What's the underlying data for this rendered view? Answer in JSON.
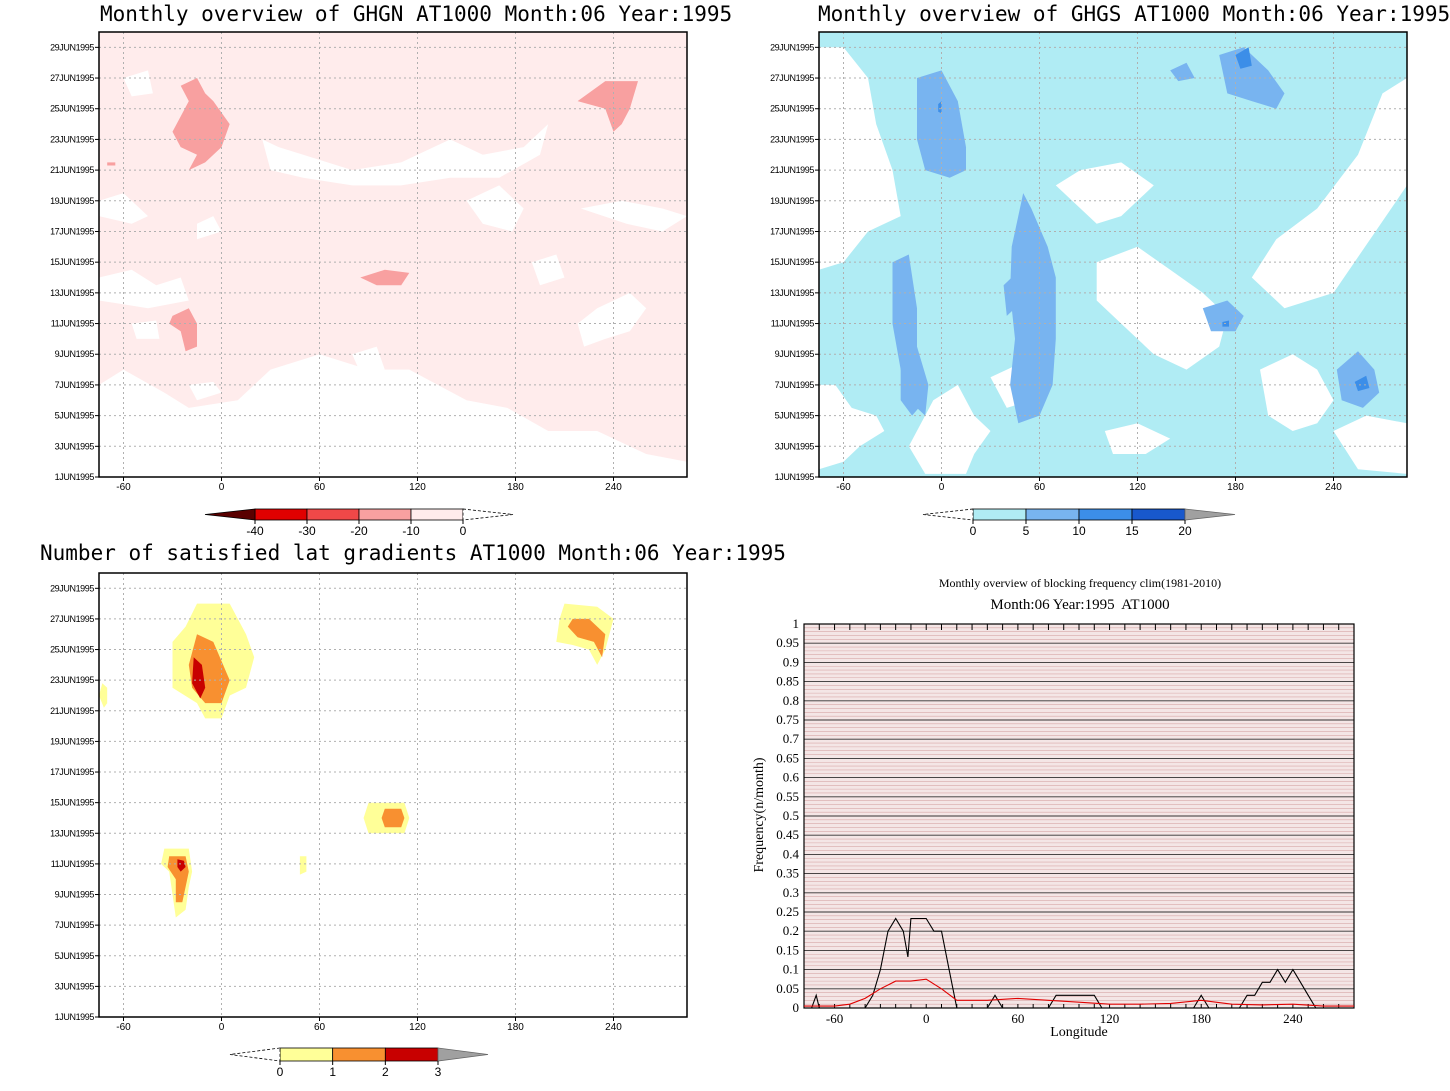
{
  "panels": {
    "ghgn": {
      "title": "Monthly overview of GHGN AT1000 Month:06 Year:1995",
      "colorbar": {
        "labels": [
          "-40",
          "-30",
          "-20",
          "-10",
          "0"
        ],
        "colors": [
          "#5a0000",
          "#e00000",
          "#f04848",
          "#f8a0a0",
          "#ffecec"
        ]
      },
      "fill_base": "#ffecec",
      "fill_white": "#ffffff",
      "fill_level": "#f8a0a0",
      "fill_level2": "#f04848"
    },
    "ghgs": {
      "title": "Monthly overview of GHGS AT1000 Month:06 Year:1995",
      "colorbar": {
        "labels": [
          "0",
          "5",
          "10",
          "15",
          "20"
        ],
        "colors": [
          "#b0ecf4",
          "#78b4f0",
          "#3c8ee8",
          "#1858cc",
          "#a0a0a0"
        ]
      },
      "fill_base": "#b0ecf4",
      "fill_white": "#ffffff",
      "fill_level": "#78b4f0",
      "fill_level2": "#3c8ee8"
    },
    "gradients": {
      "title": "Number of satisfied lat gradients AT1000 Month:06 Year:1995",
      "colorbar": {
        "labels": [
          "0",
          "1",
          "2",
          "3"
        ],
        "colors": [
          "#ffff98",
          "#f89030",
          "#c80000",
          "#a0a0a0"
        ]
      }
    },
    "blocking": {
      "title": "Monthly overview of blocking frequency clim(1981-2010)",
      "subtitle": "Month:06 Year:1995  AT1000",
      "ylabel": "Frequency(n/month)",
      "xlabel": "Longitude"
    }
  },
  "axes": {
    "date_ticks": [
      "1JUN1995",
      "3JUN1995",
      "5JUN1995",
      "7JUN1995",
      "9JUN1995",
      "11JUN1995",
      "13JUN1995",
      "15JUN1995",
      "17JUN1995",
      "19JUN1995",
      "21JUN1995",
      "23JUN1995",
      "25JUN1995",
      "27JUN1995",
      "29JUN1995"
    ],
    "lon_ticks": [
      "-60",
      "0",
      "60",
      "120",
      "180",
      "240"
    ]
  },
  "chart_data": [
    {
      "type": "heatmap",
      "title": "Monthly overview of GHGN AT1000 Month:06 Year:1995",
      "x_axis": "longitude",
      "xlim": [
        -75,
        285
      ],
      "y_axis": "date",
      "ylim": [
        "1JUN1995",
        "29JUN1995"
      ],
      "colorbar_levels": [
        -40,
        -30,
        -20,
        -10,
        0
      ],
      "features": [
        {
          "level": "-10 to -20",
          "lon_center": -15,
          "date_center": "24JUN1995"
        },
        {
          "level": "-10 to -20",
          "lon_center": 240,
          "date_center": "26JUN1995"
        },
        {
          "level": "-10 to -20",
          "lon_center": -25,
          "date_center": "11JUN1995"
        },
        {
          "level": "-10 to -20",
          "lon_center": 100,
          "date_center": "14JUN1995"
        }
      ]
    },
    {
      "type": "heatmap",
      "title": "Monthly overview of GHGS AT1000 Month:06 Year:1995",
      "x_axis": "longitude",
      "xlim": [
        -75,
        285
      ],
      "y_axis": "date",
      "ylim": [
        "1JUN1995",
        "29JUN1995"
      ],
      "colorbar_levels": [
        0,
        5,
        10,
        15,
        20
      ],
      "features": [
        {
          "level": "5 to 10",
          "lon_center": 0,
          "date_center": "24JUN1995"
        },
        {
          "level": "5 to 10",
          "lon_center": 60,
          "date_center": "11JUN1995"
        },
        {
          "level": "5 to 10",
          "lon_center": -25,
          "date_center": "10JUN1995"
        },
        {
          "level": "5 to 10",
          "lon_center": 190,
          "date_center": "27JUN1995"
        },
        {
          "level": "5 to 10",
          "lon_center": 255,
          "date_center": "7JUN1995"
        },
        {
          "level": "5 to 10",
          "lon_center": 175,
          "date_center": "11JUN1995"
        }
      ]
    },
    {
      "type": "heatmap",
      "title": "Number of satisfied lat gradients AT1000 Month:06 Year:1995",
      "x_axis": "longitude",
      "xlim": [
        -75,
        285
      ],
      "y_axis": "date",
      "ylim": [
        "1JUN1995",
        "29JUN1995"
      ],
      "colorbar_levels": [
        0,
        1,
        2,
        3
      ],
      "features": [
        {
          "max_level": 3,
          "lon_center": -15,
          "date_center": "23JUN1995"
        },
        {
          "max_level": 2,
          "lon_center": 230,
          "date_center": "26JUN1995"
        },
        {
          "max_level": 2,
          "lon_center": 105,
          "date_center": "14JUN1995"
        },
        {
          "max_level": 3,
          "lon_center": -25,
          "date_center": "11JUN1995"
        },
        {
          "max_level": 1,
          "lon_center": -72,
          "date_center": "22JUN1995"
        },
        {
          "max_level": 1,
          "lon_center": 50,
          "date_center": "11JUN1995"
        }
      ]
    },
    {
      "type": "line",
      "title": "Monthly overview of blocking frequency clim(1981-2010)",
      "subtitle": "Month:06 Year:1995  AT1000",
      "xlabel": "Longitude",
      "ylabel": "Frequency(n/month)",
      "xlim": [
        -80,
        280
      ],
      "ylim": [
        0,
        1
      ],
      "x_ticks": [
        -60,
        0,
        60,
        120,
        180,
        240
      ],
      "y_ticks": [
        0,
        0.05,
        0.1,
        0.15,
        0.2,
        0.25,
        0.3,
        0.35,
        0.4,
        0.45,
        0.5,
        0.55,
        0.6,
        0.65,
        0.7,
        0.75,
        0.8,
        0.85,
        0.9,
        0.95,
        1
      ],
      "grid": true,
      "series": [
        {
          "color": "#000000",
          "x": [
            -80,
            -75,
            -72,
            -70,
            -65,
            -50,
            -40,
            -35,
            -30,
            -25,
            -20,
            -15,
            -12,
            -10,
            -5,
            0,
            5,
            10,
            15,
            20,
            40,
            45,
            50,
            55,
            60,
            65,
            75,
            80,
            85,
            110,
            115,
            120,
            130,
            160,
            175,
            180,
            185,
            190,
            200,
            205,
            210,
            215,
            220,
            225,
            230,
            235,
            240,
            245,
            250,
            255,
            260,
            280
          ],
          "y": [
            0,
            0,
            0.033,
            0,
            0,
            0,
            0,
            0.033,
            0.1,
            0.2,
            0.233,
            0.2,
            0.133,
            0.233,
            0.233,
            0.233,
            0.2,
            0.2,
            0.1,
            0,
            0,
            0.033,
            0,
            0,
            0,
            0,
            0,
            0,
            0.033,
            0.033,
            0,
            0,
            0,
            0,
            0,
            0.033,
            0,
            0,
            0,
            0,
            0.033,
            0.033,
            0.067,
            0.067,
            0.1,
            0.067,
            0.1,
            0.067,
            0.033,
            0,
            0,
            0
          ]
        },
        {
          "color": "#e00000",
          "x": [
            -80,
            -60,
            -50,
            -40,
            -30,
            -20,
            -10,
            0,
            10,
            20,
            40,
            60,
            80,
            100,
            120,
            140,
            160,
            180,
            200,
            220,
            240,
            260,
            280
          ],
          "y": [
            0.005,
            0.005,
            0.01,
            0.025,
            0.05,
            0.07,
            0.07,
            0.075,
            0.05,
            0.02,
            0.02,
            0.025,
            0.02,
            0.015,
            0.01,
            0.01,
            0.012,
            0.02,
            0.01,
            0.008,
            0.01,
            0.005,
            0.005
          ]
        }
      ]
    }
  ]
}
